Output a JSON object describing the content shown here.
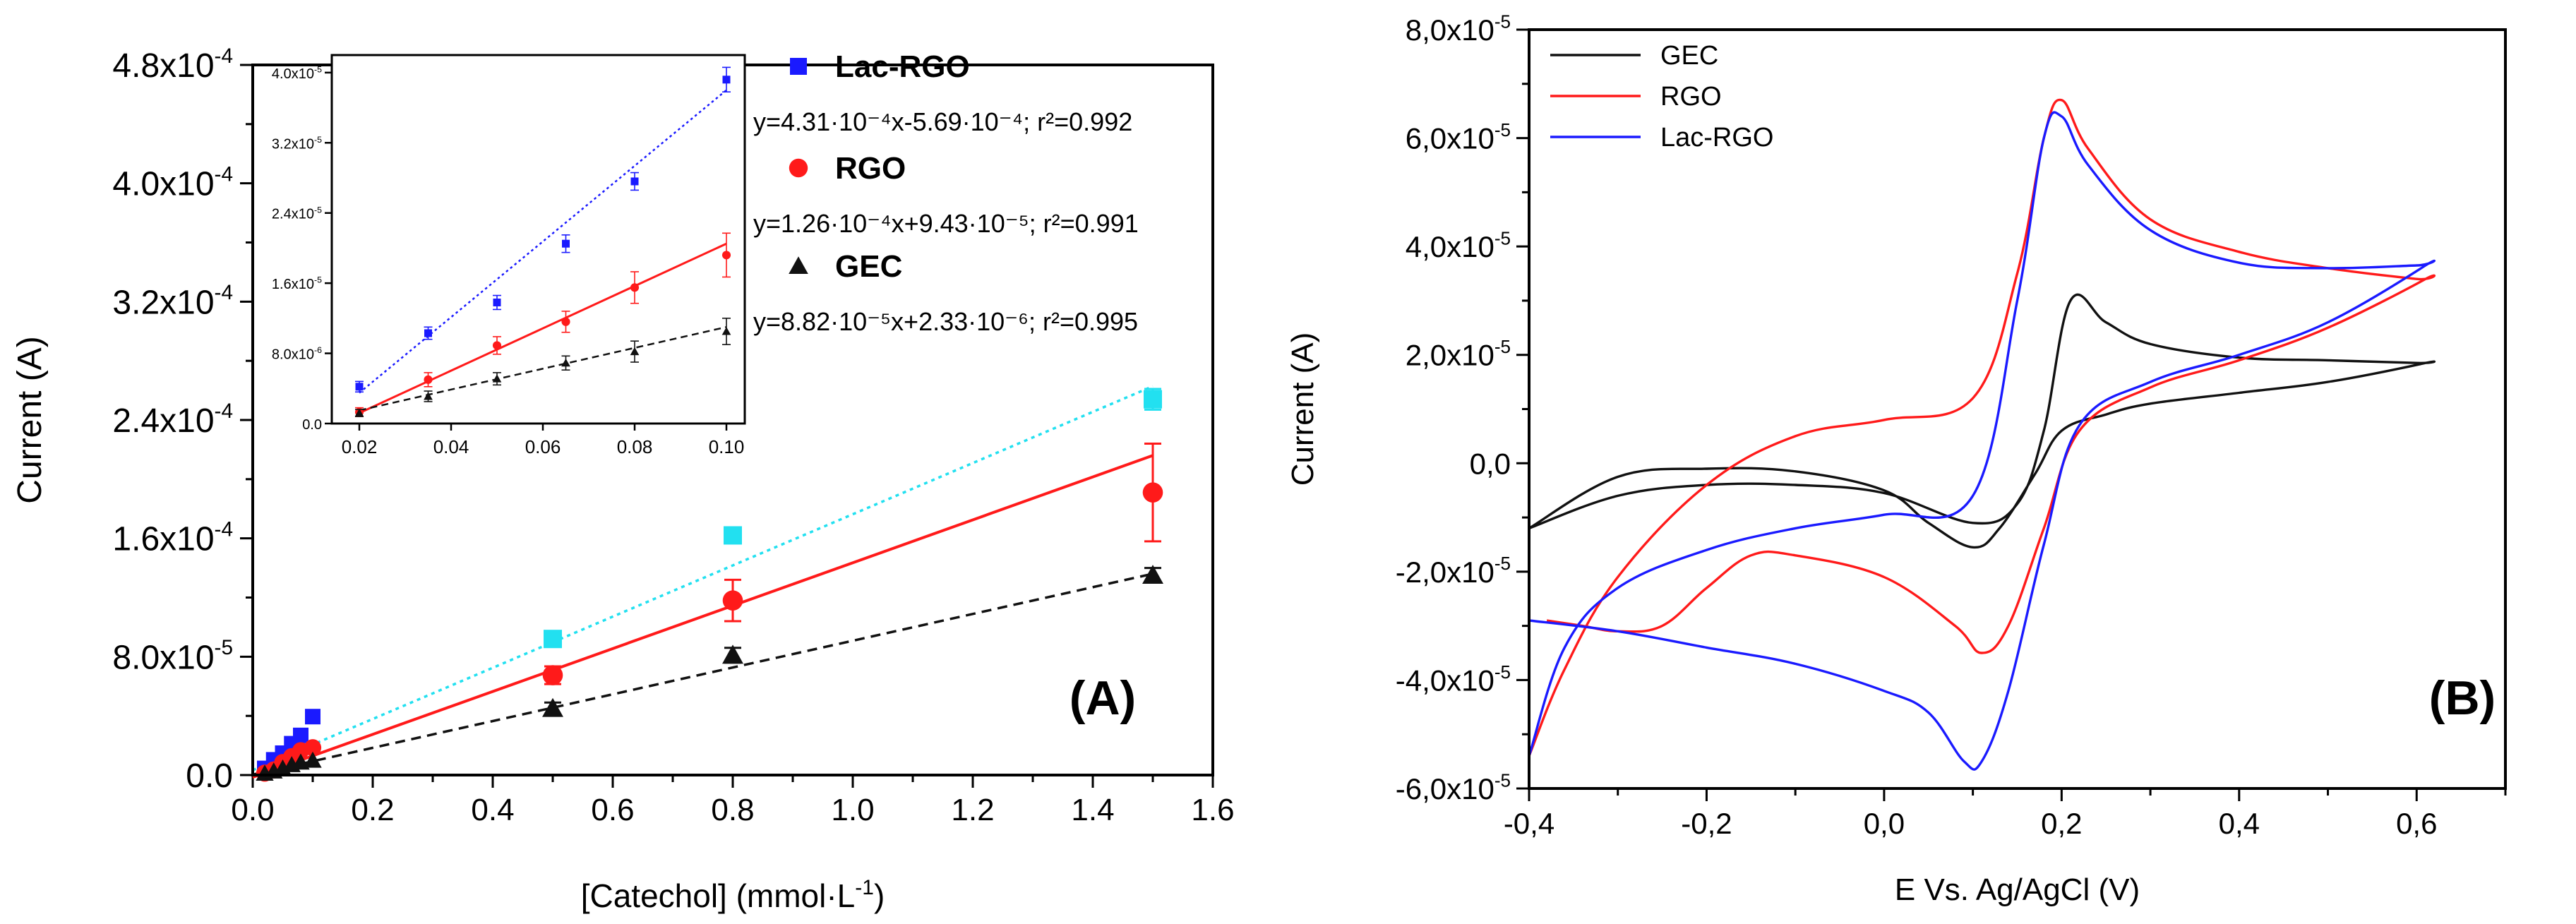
{
  "chart_data": [
    {
      "panel": "A",
      "type": "scatter",
      "panel_label": "(A)",
      "xlabel": "[Catechol] (mmol·L",
      "xlabel_sup": "-1",
      "xlabel_end": ")",
      "ylabel": "Current (A)",
      "xlim": [
        0,
        1.6
      ],
      "ylim": [
        0,
        0.00048
      ],
      "xticks": [
        0,
        0.2,
        0.4,
        0.6,
        0.8,
        1.0,
        1.2,
        1.4,
        1.6
      ],
      "xtick_labels": [
        "0.0",
        "0.2",
        "0.4",
        "0.6",
        "0.8",
        "1.0",
        "1.2",
        "1.4",
        "1.6"
      ],
      "yticks": [
        0,
        8e-05,
        0.00016,
        0.00024,
        0.00032,
        0.0004,
        0.00048
      ],
      "ytick_labels": [
        {
          "m": "0.0",
          "e": ""
        },
        {
          "m": "8.0x10",
          "e": "-5"
        },
        {
          "m": "1.6x10",
          "e": "-4"
        },
        {
          "m": "2.4x10",
          "e": "-4"
        },
        {
          "m": "3.2x10",
          "e": "-4"
        },
        {
          "m": "4.0x10",
          "e": "-4"
        },
        {
          "m": "4.8x10",
          "e": "-4"
        }
      ],
      "series": [
        {
          "name": "Lac-RGO",
          "marker": "square",
          "color": "#1a1aff",
          "highlight": "#22e0f0",
          "x": [
            0.02,
            0.035,
            0.05,
            0.065,
            0.08,
            0.1,
            0.5,
            0.8,
            1.5
          ],
          "y": [
            4.5e-06,
            1.03e-05,
            1.48e-05,
            2.12e-05,
            2.68e-05,
            3.95e-05,
            9.2e-05,
            0.000162,
            0.000254
          ],
          "err": [
            0,
            0,
            0,
            0,
            0,
            0,
            3e-06,
            3e-06,
            7e-06
          ],
          "highlight_points": [
            6,
            7,
            8
          ],
          "fit": {
            "slope": 0.000173,
            "intercept": 3.3e-06,
            "x_end": 1.5,
            "color": "#22e0f0",
            "dash": "dotted"
          },
          "equation": "y=4.31·10⁻⁴x-5.69·10⁻⁴; r²=0.992"
        },
        {
          "name": "RGO",
          "marker": "circle",
          "color": "#ff1a1a",
          "x": [
            0.02,
            0.035,
            0.05,
            0.065,
            0.08,
            0.1,
            0.5,
            0.8,
            1.5
          ],
          "y": [
            1.3e-06,
            3.5e-06,
            8.5e-06,
            1.25e-05,
            1.65e-05,
            1.85e-05,
            6.75e-05,
            0.000118,
            0.000191
          ],
          "err": [
            0,
            0,
            0,
            0,
            0,
            0,
            6e-06,
            1.4e-05,
            3.3e-05
          ],
          "fit": {
            "slope": 0.000145,
            "intercept": -1.5e-06,
            "x_end": 1.5,
            "color": "#ff1a1a",
            "dash": "solid"
          },
          "equation": "y=1.26·10⁻⁴x+9.43·10⁻⁵; r²=0.991"
        },
        {
          "name": "GEC",
          "marker": "triangle",
          "color": "#111111",
          "x": [
            0.02,
            0.035,
            0.05,
            0.065,
            0.08,
            0.1,
            0.5,
            0.8,
            1.5
          ],
          "y": [
            1e-06,
            2.5e-06,
            4.5e-06,
            6.8e-06,
            8.5e-06,
            9.8e-06,
            4.5e-05,
            8.1e-05,
            0.000135
          ],
          "err": [
            0,
            0,
            0,
            0,
            0,
            0,
            4e-06,
            5e-06,
            5e-06
          ],
          "fit": {
            "slope": 9.05e-05,
            "intercept": 3e-07,
            "x_end": 1.5,
            "color": "#111111",
            "dash": "dashed"
          },
          "equation": "y=8.82·10⁻⁵x+2.33·10⁻⁶; r²=0.995"
        }
      ],
      "inset": {
        "xlim": [
          0.014,
          0.104
        ],
        "ylim": [
          0,
          4.2e-05
        ],
        "xticks": [
          0.02,
          0.04,
          0.06,
          0.08,
          0.1
        ],
        "xtick_labels": [
          "0.02",
          "0.04",
          "0.06",
          "0.08",
          "0.10"
        ],
        "yticks": [
          0,
          8e-06,
          1.6e-05,
          2.4e-05,
          3.2e-05,
          4e-05
        ],
        "ytick_labels": [
          {
            "m": "0.0",
            "e": ""
          },
          {
            "m": "8.0x10",
            "e": "-6"
          },
          {
            "m": "1.6x10",
            "e": "-5"
          },
          {
            "m": "2.4x10",
            "e": "-5"
          },
          {
            "m": "3.2x10",
            "e": "-5"
          },
          {
            "m": "4.0x10",
            "e": "-5"
          }
        ],
        "series": [
          {
            "name": "Lac-RGO",
            "color": "#1a1aff",
            "x": [
              0.02,
              0.035,
              0.05,
              0.065,
              0.08,
              0.1
            ],
            "y": [
              4.2e-06,
              1.03e-05,
              1.38e-05,
              2.05e-05,
              2.76e-05,
              3.92e-05
            ],
            "err": [
              6e-07,
              7e-07,
              8e-07,
              1e-06,
              1e-06,
              1.4e-06
            ],
            "fit": [
              [
                0.02,
                3.5e-06
              ],
              [
                0.1,
                3.8e-05
              ]
            ],
            "dash": "dotted"
          },
          {
            "name": "RGO",
            "color": "#ff1a1a",
            "x": [
              0.02,
              0.035,
              0.05,
              0.065,
              0.08,
              0.1
            ],
            "y": [
              1.3e-06,
              5e-06,
              8.9e-06,
              1.16e-05,
              1.55e-05,
              1.92e-05
            ],
            "err": [
              5e-07,
              8e-07,
              1e-06,
              1.2e-06,
              1.8e-06,
              2.5e-06
            ],
            "fit": [
              [
                0.02,
                1.2e-06
              ],
              [
                0.1,
                2.05e-05
              ]
            ],
            "dash": "solid"
          },
          {
            "name": "GEC",
            "color": "#111111",
            "x": [
              0.02,
              0.035,
              0.05,
              0.065,
              0.08,
              0.1
            ],
            "y": [
              1.2e-06,
              3.1e-06,
              5.1e-06,
              6.9e-06,
              8.2e-06,
              1.05e-05
            ],
            "err": [
              4e-07,
              6e-07,
              7e-07,
              8e-07,
              1.2e-06,
              1.5e-06
            ],
            "fit": [
              [
                0.02,
                1.5e-06
              ],
              [
                0.1,
                1.1e-05
              ]
            ],
            "dash": "dashed"
          }
        ]
      },
      "legend": [
        {
          "name": "Lac-RGO",
          "equation": "y=4.31·10⁻⁴x-5.69·10⁻⁴; r²=0.992"
        },
        {
          "name": "RGO",
          "equation": "y=1.26·10⁻⁴x+9.43·10⁻⁵; r²=0.991"
        },
        {
          "name": "GEC",
          "equation": "y=8.82·10⁻⁵x+2.33·10⁻⁶; r²=0.995"
        }
      ]
    },
    {
      "panel": "B",
      "type": "line",
      "panel_label": "(B)",
      "xlabel": "E Vs. Ag/AgCl (V)",
      "ylabel": "Current (A)",
      "xlim": [
        -0.4,
        0.7
      ],
      "ylim": [
        -6e-05,
        8e-05
      ],
      "xticks": [
        -0.4,
        -0.2,
        0.0,
        0.2,
        0.4,
        0.6
      ],
      "xtick_labels": [
        "-0,4",
        "-0,2",
        "0,0",
        "0,2",
        "0,4",
        "0,6"
      ],
      "yticks": [
        -6e-05,
        -4e-05,
        -2e-05,
        0,
        2e-05,
        4e-05,
        6e-05,
        8e-05
      ],
      "ytick_labels": [
        {
          "m": "-6,0x10",
          "e": "-5"
        },
        {
          "m": "-4,0x10",
          "e": "-5"
        },
        {
          "m": "-2,0x10",
          "e": "-5"
        },
        {
          "m": "0,0",
          "e": ""
        },
        {
          "m": "2,0x10",
          "e": "-5"
        },
        {
          "m": "4,0x10",
          "e": "-5"
        },
        {
          "m": "6,0x10",
          "e": "-5"
        },
        {
          "m": "8,0x10",
          "e": "-5"
        }
      ],
      "series": [
        {
          "name": "GEC",
          "color": "#111111",
          "x": [
            -0.4,
            -0.3,
            -0.2,
            -0.1,
            0.0,
            0.1,
            0.15,
            0.18,
            0.21,
            0.25,
            0.3,
            0.4,
            0.5,
            0.6,
            0.61,
            0.5,
            0.4,
            0.3,
            0.25,
            0.2,
            0.17,
            0.13,
            0.1,
            0.05,
            0.0,
            -0.1,
            -0.2,
            -0.3,
            -0.4
          ],
          "y": [
            -1.2e-05,
            -6e-06,
            -4e-06,
            -4e-06,
            -5.5e-06,
            -1.1e-05,
            -7.5e-06,
            6e-06,
            3e-05,
            2.6e-05,
            2.2e-05,
            1.95e-05,
            1.9e-05,
            1.85e-05,
            1.85e-05,
            1.5e-05,
            1.3e-05,
            1.1e-05,
            9e-06,
            6e-06,
            -2e-06,
            -1.2e-05,
            -1.55e-05,
            -1.1e-05,
            -5e-06,
            -1.5e-06,
            -1e-06,
            -2.5e-06,
            -1.2e-05
          ]
        },
        {
          "name": "RGO",
          "color": "#ff1a1a",
          "x": [
            -0.4,
            -0.36,
            -0.3,
            -0.2,
            -0.1,
            0.0,
            0.1,
            0.15,
            0.18,
            0.2,
            0.23,
            0.3,
            0.4,
            0.5,
            0.6,
            0.61,
            0.5,
            0.4,
            0.3,
            0.22,
            0.18,
            0.14,
            0.11,
            0.08,
            0.0,
            -0.1,
            -0.15,
            -0.2,
            -0.25,
            -0.3,
            -0.34,
            -0.38
          ],
          "y": [
            -5.4e-05,
            -3.8e-05,
            -2.1e-05,
            -4e-06,
            5e-06,
            8e-06,
            1.2e-05,
            3.5e-05,
            6e-05,
            6.7e-05,
            5.8e-05,
            4.5e-05,
            3.9e-05,
            3.6e-05,
            3.4e-05,
            3.4e-05,
            2.5e-05,
            1.9e-05,
            1.4e-05,
            6e-06,
            -1.2e-05,
            -3e-05,
            -3.5e-05,
            -3e-05,
            -2.1e-05,
            -1.7e-05,
            -1.7e-05,
            -2.3e-05,
            -3e-05,
            -3.1e-05,
            -3e-05,
            -2.9e-05
          ]
        },
        {
          "name": "Lac-RGO",
          "color": "#1a1aff",
          "x": [
            -0.4,
            -0.36,
            -0.3,
            -0.2,
            -0.1,
            0.0,
            0.1,
            0.15,
            0.18,
            0.2,
            0.23,
            0.3,
            0.4,
            0.5,
            0.6,
            0.61,
            0.5,
            0.4,
            0.3,
            0.22,
            0.18,
            0.14,
            0.11,
            0.09,
            0.05,
            0.0,
            -0.1,
            -0.2,
            -0.3,
            -0.4
          ],
          "y": [
            -5.4e-05,
            -3.4e-05,
            -2.3e-05,
            -1.6e-05,
            -1.2e-05,
            -9.5e-06,
            -6e-06,
            3e-05,
            6e-05,
            6.4e-05,
            5.5e-05,
            4.3e-05,
            3.7e-05,
            3.6e-05,
            3.65e-05,
            3.65e-05,
            2.6e-05,
            2e-05,
            1.5e-05,
            7e-06,
            -1.5e-05,
            -4.2e-05,
            -5.5e-05,
            -5.5e-05,
            -4.6e-05,
            -4.2e-05,
            -3.7e-05,
            -3.4e-05,
            -3.1e-05,
            -2.9e-05
          ]
        }
      ],
      "legend": [
        {
          "name": "GEC",
          "color": "#111111"
        },
        {
          "name": "RGO",
          "color": "#ff1a1a"
        },
        {
          "name": "Lac-RGO",
          "color": "#1a1aff"
        }
      ]
    }
  ]
}
